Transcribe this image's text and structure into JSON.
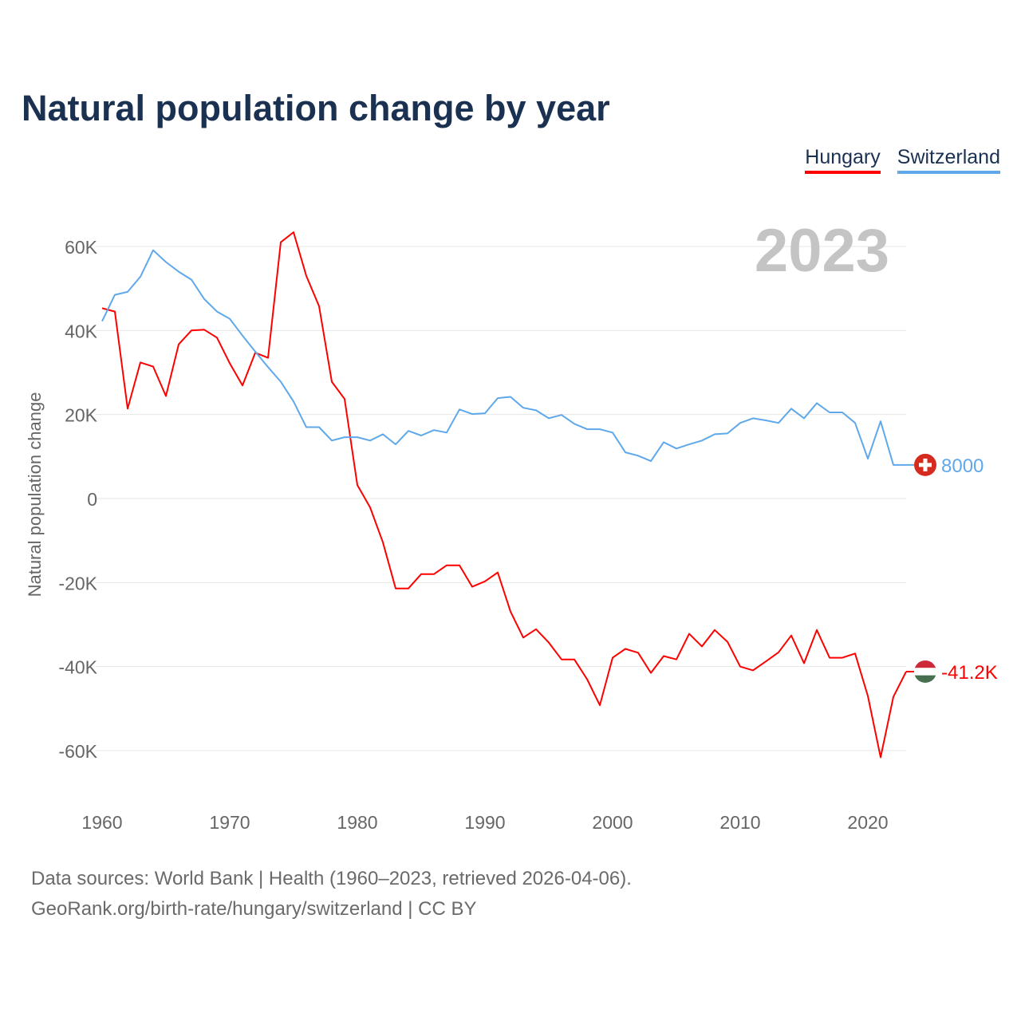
{
  "chart_data": {
    "type": "line",
    "title": "Natural population change by year",
    "xlabel": "",
    "ylabel": "Natural population change",
    "xlim": [
      1960,
      2023
    ],
    "ylim": [
      -70000,
      65000
    ],
    "x_ticks": [
      1960,
      1970,
      1980,
      1990,
      2000,
      2010,
      2020
    ],
    "y_ticks": [
      {
        "v": 60000,
        "l": "60K"
      },
      {
        "v": 40000,
        "l": "40K"
      },
      {
        "v": 20000,
        "l": "20K"
      },
      {
        "v": 0,
        "l": "0"
      },
      {
        "v": -20000,
        "l": "-20K"
      },
      {
        "v": -40000,
        "l": "-40K"
      },
      {
        "v": -60000,
        "l": "-60K"
      }
    ],
    "grid": true,
    "legend_placement": "top-right",
    "current_year_label": "2023",
    "series": [
      {
        "name": "Hungary",
        "color": "#ff0000",
        "end_label": "-41.2K",
        "flag": "hungary-flag",
        "values": [
          45300,
          44500,
          21400,
          32400,
          31400,
          24400,
          36700,
          40000,
          40200,
          38300,
          32200,
          26900,
          34700,
          33500,
          61000,
          63400,
          53000,
          45800,
          27800,
          23700,
          3200,
          -2100,
          -10400,
          -21400,
          -21400,
          -18000,
          -18000,
          -15900,
          -15900,
          -21000,
          -19700,
          -17600,
          -26900,
          -33100,
          -31100,
          -34300,
          -38300,
          -38300,
          -43000,
          -49200,
          -37900,
          -35800,
          -36700,
          -41500,
          -37500,
          -38300,
          -32200,
          -35200,
          -31300,
          -34100,
          -40000,
          -40900,
          -38800,
          -36600,
          -32600,
          -39200,
          -31300,
          -37900,
          -37900,
          -36900,
          -47000,
          -61600,
          -47200,
          -41200
        ]
      },
      {
        "name": "Switzerland",
        "color": "#5fa8ea",
        "end_label": "8000",
        "flag": "switzerland-flag",
        "values": [
          42200,
          48500,
          49200,
          52800,
          59100,
          56300,
          54000,
          52100,
          47500,
          44500,
          42800,
          38800,
          35000,
          31300,
          27800,
          23100,
          17000,
          17000,
          13800,
          14600,
          14600,
          13800,
          15300,
          12900,
          16100,
          15000,
          16300,
          15700,
          21200,
          20100,
          20300,
          23900,
          24200,
          21600,
          21000,
          19100,
          19900,
          17800,
          16500,
          16500,
          15700,
          11000,
          10200,
          8900,
          13400,
          11900,
          12900,
          13800,
          15300,
          15500,
          18000,
          19100,
          18600,
          18000,
          21400,
          19100,
          22700,
          20500,
          20500,
          18000,
          9500,
          18400,
          8000,
          8000
        ]
      }
    ]
  },
  "footer": {
    "line1": "Data sources: World Bank | Health (1960–2023, retrieved 2026-04-06).",
    "line2": "GeoRank.org/birth-rate/hungary/switzerland | CC BY"
  }
}
